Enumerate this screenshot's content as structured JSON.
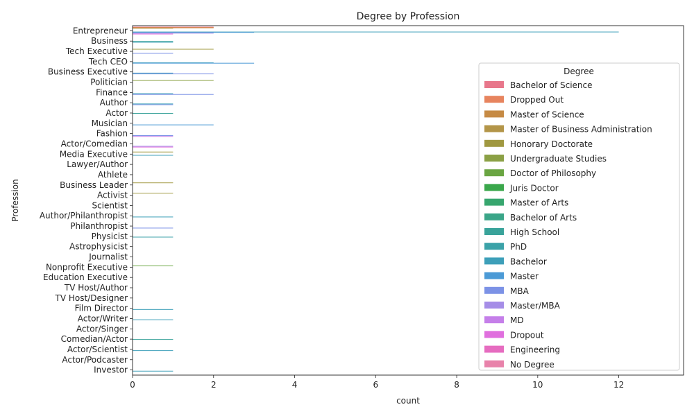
{
  "chart_data": {
    "type": "bar",
    "orientation": "horizontal",
    "title": "Degree by Profession",
    "xlabel": "count",
    "ylabel": "Profession",
    "xlim": [
      0,
      13.6
    ],
    "xticks": [
      0,
      2,
      4,
      6,
      8,
      10,
      12
    ],
    "grid": false,
    "legend_title": "Degree",
    "legend_position": "right",
    "categories": [
      "Entrepreneur",
      "Business",
      "Tech Executive",
      "Tech CEO",
      "Business Executive",
      "Politician",
      "Finance",
      "Author",
      "Actor",
      "Musician",
      "Fashion",
      "Actor/Comedian",
      "Media Executive",
      "Lawyer/Author",
      "Athlete",
      "Business Leader",
      "Activist",
      "Scientist",
      "Author/Philanthropist",
      "Philanthropist",
      "Physicist",
      "Astrophysicist",
      "Journalist",
      "Nonprofit Executive",
      "Education Executive",
      "TV Host/Author",
      "TV Host/Designer",
      "Film Director",
      "Actor/Writer",
      "Actor/Singer",
      "Comedian/Actor",
      "Actor/Scientist",
      "Actor/Podcaster",
      "Investor"
    ],
    "series": [
      {
        "name": "Bachelor of Science",
        "color": "#e8778b",
        "values": [
          2,
          0,
          0,
          0,
          0,
          0,
          0,
          0,
          0,
          0,
          0,
          0,
          0,
          0,
          0,
          0,
          0,
          0,
          0,
          0,
          0,
          0,
          0,
          0,
          0,
          0,
          0,
          0,
          0,
          0,
          0,
          0,
          0,
          0
        ]
      },
      {
        "name": "Dropped Out",
        "color": "#e7845e",
        "values": [
          2,
          0,
          0,
          0,
          0,
          0,
          0,
          0,
          0,
          0,
          0,
          0,
          0,
          0,
          0,
          0,
          0,
          0,
          0,
          0,
          0,
          0,
          0,
          0,
          0,
          0,
          0,
          0,
          0,
          0,
          0,
          0,
          0,
          0
        ]
      },
      {
        "name": "Master of Science",
        "color": "#c68a44",
        "values": [
          2,
          0,
          0,
          0,
          0,
          0,
          0,
          0,
          0,
          0,
          0,
          0,
          0,
          0,
          0,
          0,
          0,
          0,
          0,
          0,
          0,
          0,
          0,
          0,
          0,
          0,
          0,
          0,
          0,
          0,
          0,
          0,
          0,
          0
        ]
      },
      {
        "name": "Master of Business Administration",
        "color": "#b39548",
        "values": [
          1,
          0,
          0,
          0,
          0,
          0,
          0,
          0,
          0,
          0,
          0,
          0,
          0,
          0,
          0,
          0,
          0,
          0,
          0,
          0,
          0,
          0,
          0,
          0,
          0,
          0,
          0,
          0,
          0,
          0,
          0,
          0,
          0,
          0
        ]
      },
      {
        "name": "Honorary Doctorate",
        "color": "#a09840",
        "values": [
          0,
          0,
          2,
          0,
          0,
          0,
          0,
          0,
          0,
          0,
          0,
          0,
          1,
          0,
          0,
          1,
          1,
          0,
          0,
          0,
          0,
          0,
          0,
          0,
          0,
          0,
          0,
          0,
          0,
          0,
          0,
          0,
          0,
          0
        ]
      },
      {
        "name": "Undergraduate Studies",
        "color": "#8ba045",
        "values": [
          0,
          0,
          0,
          0,
          0,
          2,
          0,
          0,
          0,
          0,
          0,
          0,
          0,
          0,
          0,
          0,
          0,
          0,
          0,
          0,
          0,
          0,
          0,
          0,
          0,
          0,
          0,
          0,
          0,
          0,
          0,
          0,
          0,
          0
        ]
      },
      {
        "name": "Doctor of Philosophy",
        "color": "#6aa542",
        "values": [
          0,
          0,
          0,
          0,
          0,
          0,
          0,
          0,
          0,
          0,
          0,
          0,
          0,
          0,
          0,
          0,
          0,
          0,
          0,
          0,
          0,
          0,
          0,
          1,
          0,
          0,
          0,
          0,
          0,
          0,
          0,
          0,
          0,
          0
        ]
      },
      {
        "name": "Juris Doctor",
        "color": "#3aa74b",
        "values": [
          0,
          0,
          0,
          0,
          0,
          0,
          0,
          0,
          0,
          0,
          0,
          0,
          0,
          0,
          0,
          0,
          0,
          0,
          0,
          0,
          0,
          0,
          0,
          0,
          0,
          0,
          0,
          0,
          0,
          0,
          0,
          0,
          0,
          0
        ]
      },
      {
        "name": "Master of Arts",
        "color": "#37a66e",
        "values": [
          0,
          0,
          0,
          0,
          0,
          0,
          0,
          0,
          0,
          0,
          0,
          0,
          0,
          0,
          0,
          0,
          0,
          0,
          0,
          0,
          0,
          0,
          0,
          0,
          0,
          0,
          0,
          0,
          0,
          0,
          0,
          0,
          0,
          0
        ]
      },
      {
        "name": "Bachelor of Arts",
        "color": "#3aa588",
        "values": [
          0,
          0,
          0,
          0,
          0,
          0,
          0,
          0,
          0,
          0,
          0,
          0,
          0,
          0,
          0,
          0,
          0,
          0,
          0,
          0,
          0,
          0,
          0,
          0,
          0,
          0,
          0,
          0,
          0,
          0,
          0,
          0,
          0,
          0
        ]
      },
      {
        "name": "High School",
        "color": "#39a39a",
        "values": [
          0,
          1,
          0,
          0,
          0,
          0,
          0,
          0,
          1,
          0,
          0,
          0,
          0,
          0,
          0,
          0,
          0,
          0,
          0,
          0,
          0,
          0,
          0,
          0,
          0,
          0,
          0,
          0,
          0,
          0,
          1,
          0,
          0,
          0
        ]
      },
      {
        "name": "PhD",
        "color": "#3ba2a8",
        "values": [
          0,
          0,
          0,
          0,
          0,
          0,
          0,
          0,
          0,
          0,
          0,
          0,
          0,
          0,
          0,
          0,
          0,
          0,
          0,
          0,
          1,
          0,
          0,
          0,
          0,
          0,
          0,
          0,
          0,
          0,
          0,
          0,
          0,
          0
        ]
      },
      {
        "name": "Bachelor",
        "color": "#3d9fb9",
        "values": [
          12,
          1,
          0,
          2,
          1,
          0,
          1,
          1,
          0,
          0,
          0,
          0,
          1,
          0,
          0,
          0,
          0,
          0,
          1,
          0,
          0,
          0,
          0,
          0,
          0,
          0,
          0,
          1,
          1,
          0,
          0,
          1,
          0,
          1
        ]
      },
      {
        "name": "Master",
        "color": "#4b9ad6",
        "values": [
          3,
          0,
          0,
          3,
          0,
          0,
          0,
          0,
          0,
          2,
          0,
          0,
          0,
          0,
          0,
          0,
          0,
          0,
          0,
          0,
          0,
          0,
          0,
          0,
          0,
          0,
          0,
          0,
          0,
          0,
          0,
          0,
          0,
          0
        ]
      },
      {
        "name": "MBA",
        "color": "#7c92e6",
        "values": [
          0,
          0,
          1,
          0,
          2,
          0,
          2,
          1,
          0,
          0,
          1,
          0,
          0,
          0,
          0,
          0,
          0,
          0,
          0,
          1,
          0,
          0,
          0,
          0,
          0,
          0,
          0,
          0,
          0,
          0,
          0,
          0,
          0,
          0
        ]
      },
      {
        "name": "Master/MBA",
        "color": "#a58de7",
        "values": [
          2,
          0,
          0,
          0,
          0,
          0,
          0,
          0,
          0,
          0,
          0,
          1,
          0,
          0,
          0,
          0,
          0,
          0,
          0,
          0,
          0,
          0,
          0,
          0,
          0,
          0,
          0,
          0,
          0,
          0,
          0,
          0,
          0,
          0
        ]
      },
      {
        "name": "MD",
        "color": "#c57fe9",
        "values": [
          0,
          0,
          0,
          0,
          0,
          0,
          0,
          0,
          0,
          0,
          1,
          0,
          0,
          0,
          0,
          0,
          0,
          0,
          0,
          0,
          0,
          0,
          0,
          0,
          0,
          0,
          0,
          0,
          0,
          0,
          0,
          0,
          0,
          0
        ]
      },
      {
        "name": "Dropout",
        "color": "#e06fde",
        "values": [
          1,
          0,
          0,
          0,
          0,
          0,
          0,
          0,
          0,
          0,
          0,
          1,
          0,
          0,
          0,
          0,
          0,
          0,
          0,
          0,
          0,
          0,
          0,
          0,
          0,
          0,
          0,
          0,
          0,
          0,
          0,
          0,
          0,
          0
        ]
      },
      {
        "name": "Engineering",
        "color": "#e66cc0",
        "values": [
          0,
          0,
          0,
          0,
          0,
          0,
          0,
          0,
          0,
          0,
          0,
          0,
          0,
          0,
          0,
          0,
          0,
          0,
          0,
          0,
          0,
          0,
          0,
          0,
          0,
          0,
          0,
          0,
          0,
          0,
          0,
          0,
          0,
          0
        ]
      },
      {
        "name": "No Degree",
        "color": "#e882aa",
        "values": [
          0,
          0,
          0,
          0,
          0,
          0,
          0,
          0,
          0,
          0,
          0,
          0,
          0,
          0,
          0,
          0,
          0,
          0,
          0,
          0,
          0,
          0,
          0,
          0,
          0,
          0,
          0,
          0,
          0,
          0,
          0,
          0,
          0,
          0
        ]
      }
    ]
  }
}
